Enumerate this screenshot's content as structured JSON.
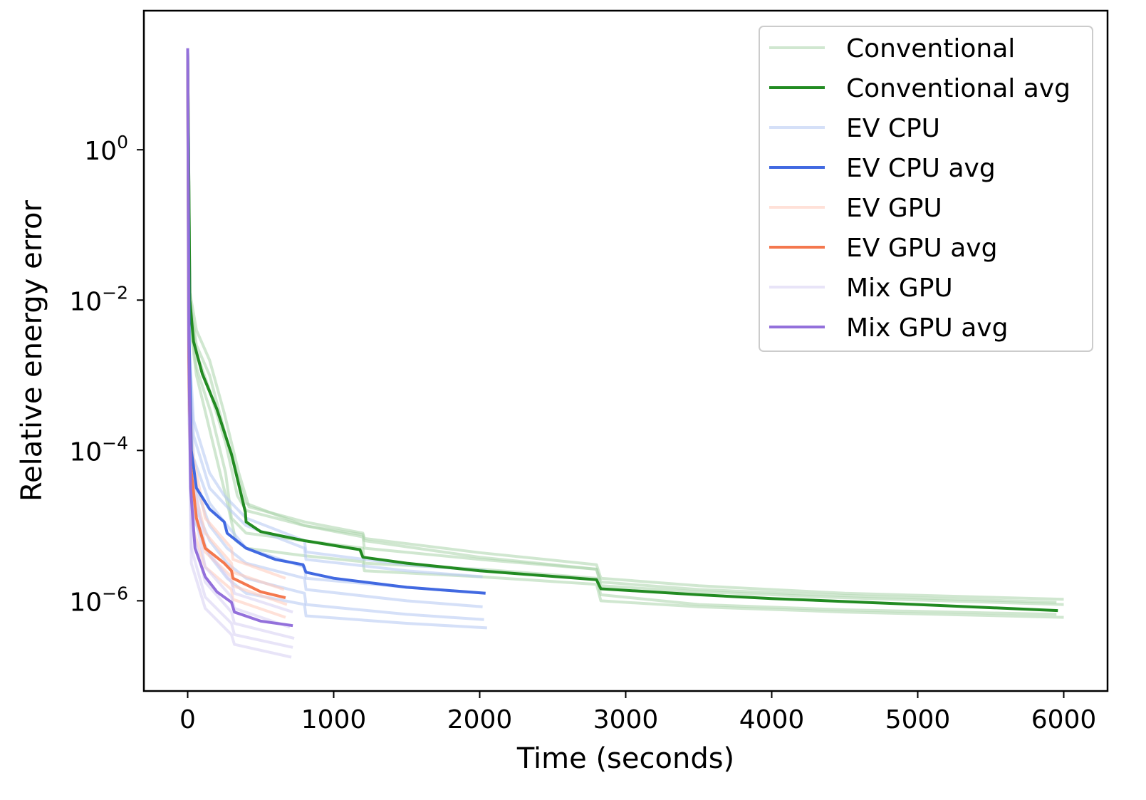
{
  "chart_data": {
    "type": "line",
    "title": "",
    "xlabel": "Time (seconds)",
    "ylabel": "Relative energy error",
    "x_scale": "linear",
    "y_scale": "log",
    "xlim": [
      -300,
      6300
    ],
    "ylim_log10": [
      -7.2,
      1.85
    ],
    "x_ticks": [
      0,
      1000,
      2000,
      3000,
      4000,
      5000,
      6000
    ],
    "x_tick_labels": [
      "0",
      "1000",
      "2000",
      "3000",
      "4000",
      "5000",
      "6000"
    ],
    "y_ticks_log10": [
      0,
      -2,
      -4,
      -6
    ],
    "y_tick_labels": [
      {
        "base": "10",
        "exp": "0"
      },
      {
        "base": "10",
        "exp": "−2"
      },
      {
        "base": "10",
        "exp": "−4"
      },
      {
        "base": "10",
        "exp": "−6"
      }
    ],
    "grid": false,
    "legend_position": "top-right",
    "legend": [
      {
        "label": "Conventional",
        "color": "#a9d4a9",
        "opacity": 0.55
      },
      {
        "label": "Conventional avg",
        "color": "#228b22",
        "opacity": 1
      },
      {
        "label": "EV CPU",
        "color": "#b3c6f2",
        "opacity": 0.55
      },
      {
        "label": "EV CPU avg",
        "color": "#4169e1",
        "opacity": 1
      },
      {
        "label": "EV GPU",
        "color": "#ffc9b8",
        "opacity": 0.55
      },
      {
        "label": "EV GPU avg",
        "color": "#f4784e",
        "opacity": 1
      },
      {
        "label": "Mix GPU",
        "color": "#d5cdf2",
        "opacity": 0.55
      },
      {
        "label": "Mix GPU avg",
        "color": "#9370db",
        "opacity": 1
      }
    ],
    "series": [
      {
        "group": "Conventional",
        "role": "avg",
        "color": "#228b22",
        "points": [
          [
            0,
            1.3
          ],
          [
            15,
            -2.0
          ],
          [
            40,
            -2.55
          ],
          [
            100,
            -2.98
          ],
          [
            200,
            -3.45
          ],
          [
            300,
            -4.05
          ],
          [
            380,
            -4.7
          ],
          [
            395,
            -4.82
          ],
          [
            400,
            -4.95
          ],
          [
            500,
            -5.08
          ],
          [
            800,
            -5.2
          ],
          [
            1180,
            -5.32
          ],
          [
            1200,
            -5.42
          ],
          [
            1500,
            -5.5
          ],
          [
            2000,
            -5.6
          ],
          [
            2800,
            -5.72
          ],
          [
            2830,
            -5.84
          ],
          [
            3500,
            -5.92
          ],
          [
            4000,
            -5.97
          ],
          [
            5000,
            -6.05
          ],
          [
            5960,
            -6.13
          ]
        ]
      },
      {
        "group": "Conventional",
        "role": "run",
        "color": "#a9d4a9",
        "points": [
          [
            0,
            1.3
          ],
          [
            15,
            -1.9
          ],
          [
            60,
            -2.4
          ],
          [
            150,
            -2.8
          ],
          [
            250,
            -3.5
          ],
          [
            350,
            -4.3
          ],
          [
            420,
            -4.75
          ],
          [
            800,
            -4.95
          ],
          [
            1200,
            -5.1
          ],
          [
            1210,
            -5.17
          ],
          [
            2000,
            -5.36
          ],
          [
            2800,
            -5.52
          ],
          [
            2830,
            -5.7
          ],
          [
            3500,
            -5.8
          ],
          [
            4500,
            -5.9
          ],
          [
            6000,
            -5.98
          ]
        ]
      },
      {
        "group": "Conventional",
        "role": "run",
        "color": "#a9d4a9",
        "points": [
          [
            0,
            1.3
          ],
          [
            15,
            -2.1
          ],
          [
            60,
            -2.7
          ],
          [
            150,
            -3.2
          ],
          [
            260,
            -3.9
          ],
          [
            340,
            -4.6
          ],
          [
            400,
            -4.8
          ],
          [
            800,
            -5.0
          ],
          [
            1200,
            -5.12
          ],
          [
            1210,
            -5.2
          ],
          [
            2000,
            -5.42
          ],
          [
            2800,
            -5.58
          ],
          [
            2830,
            -5.75
          ],
          [
            3500,
            -5.85
          ],
          [
            4500,
            -5.93
          ],
          [
            5950,
            -6.02
          ]
        ]
      },
      {
        "group": "Conventional",
        "role": "run",
        "color": "#a9d4a9",
        "points": [
          [
            0,
            1.3
          ],
          [
            15,
            -2.2
          ],
          [
            60,
            -2.9
          ],
          [
            160,
            -3.5
          ],
          [
            260,
            -4.3
          ],
          [
            300,
            -4.9
          ],
          [
            400,
            -5.1
          ],
          [
            800,
            -5.2
          ],
          [
            1200,
            -5.3
          ],
          [
            1210,
            -5.5
          ],
          [
            2000,
            -5.58
          ],
          [
            2800,
            -5.7
          ],
          [
            2830,
            -5.92
          ],
          [
            3500,
            -6.05
          ],
          [
            4500,
            -6.12
          ],
          [
            5950,
            -6.18
          ]
        ]
      },
      {
        "group": "Conventional",
        "role": "run",
        "color": "#a9d4a9",
        "points": [
          [
            0,
            1.3
          ],
          [
            15,
            -2.3
          ],
          [
            60,
            -3.0
          ],
          [
            160,
            -3.8
          ],
          [
            260,
            -4.6
          ],
          [
            330,
            -5.2
          ],
          [
            400,
            -5.3
          ],
          [
            800,
            -5.4
          ],
          [
            1200,
            -5.48
          ],
          [
            1210,
            -5.6
          ],
          [
            2000,
            -5.68
          ],
          [
            2800,
            -5.78
          ],
          [
            2830,
            -6.0
          ],
          [
            3500,
            -6.08
          ],
          [
            4500,
            -6.15
          ],
          [
            6000,
            -6.22
          ]
        ]
      },
      {
        "group": "Conventional",
        "role": "run",
        "color": "#a9d4a9",
        "points": [
          [
            0,
            1.3
          ],
          [
            15,
            -2.0
          ],
          [
            60,
            -2.6
          ],
          [
            150,
            -3.0
          ],
          [
            260,
            -3.8
          ],
          [
            380,
            -4.6
          ],
          [
            395,
            -4.7
          ],
          [
            800,
            -5.0
          ],
          [
            1200,
            -5.15
          ],
          [
            1210,
            -5.3
          ],
          [
            2000,
            -5.45
          ],
          [
            2800,
            -5.58
          ],
          [
            2830,
            -5.8
          ],
          [
            3500,
            -5.88
          ],
          [
            4500,
            -5.96
          ],
          [
            6000,
            -6.05
          ]
        ]
      },
      {
        "group": "EV CPU",
        "role": "avg",
        "color": "#4169e1",
        "points": [
          [
            0,
            1.3
          ],
          [
            10,
            -2.5
          ],
          [
            25,
            -4.0
          ],
          [
            60,
            -4.5
          ],
          [
            150,
            -4.78
          ],
          [
            250,
            -4.95
          ],
          [
            270,
            -5.1
          ],
          [
            400,
            -5.3
          ],
          [
            600,
            -5.45
          ],
          [
            790,
            -5.52
          ],
          [
            810,
            -5.62
          ],
          [
            1000,
            -5.7
          ],
          [
            1500,
            -5.82
          ],
          [
            2040,
            -5.9
          ]
        ]
      },
      {
        "group": "EV CPU",
        "role": "run",
        "color": "#b3c6f2",
        "points": [
          [
            0,
            1.3
          ],
          [
            10,
            -2.6
          ],
          [
            40,
            -3.6
          ],
          [
            150,
            -4.3
          ],
          [
            250,
            -4.6
          ],
          [
            400,
            -4.9
          ],
          [
            800,
            -5.2
          ],
          [
            810,
            -5.35
          ],
          [
            1500,
            -5.52
          ],
          [
            2050,
            -5.6
          ]
        ]
      },
      {
        "group": "EV CPU",
        "role": "run",
        "color": "#b3c6f2",
        "points": [
          [
            0,
            1.3
          ],
          [
            10,
            -2.8
          ],
          [
            40,
            -3.8
          ],
          [
            150,
            -4.5
          ],
          [
            270,
            -4.75
          ],
          [
            400,
            -5.0
          ],
          [
            800,
            -5.3
          ],
          [
            810,
            -5.45
          ],
          [
            1500,
            -5.6
          ],
          [
            2020,
            -5.68
          ]
        ]
      },
      {
        "group": "EV CPU",
        "role": "run",
        "color": "#b3c6f2",
        "points": [
          [
            0,
            1.3
          ],
          [
            10,
            -3.0
          ],
          [
            40,
            -4.1
          ],
          [
            150,
            -4.7
          ],
          [
            270,
            -5.0
          ],
          [
            400,
            -5.3
          ],
          [
            800,
            -5.55
          ],
          [
            810,
            -5.7
          ],
          [
            1500,
            -5.82
          ],
          [
            2040,
            -5.9
          ]
        ]
      },
      {
        "group": "EV CPU",
        "role": "run",
        "color": "#b3c6f2",
        "points": [
          [
            0,
            1.3
          ],
          [
            10,
            -3.3
          ],
          [
            40,
            -4.4
          ],
          [
            150,
            -5.0
          ],
          [
            270,
            -5.3
          ],
          [
            400,
            -5.5
          ],
          [
            800,
            -5.7
          ],
          [
            810,
            -5.85
          ],
          [
            1500,
            -6.0
          ],
          [
            2020,
            -6.08
          ]
        ]
      },
      {
        "group": "EV CPU",
        "role": "run",
        "color": "#b3c6f2",
        "points": [
          [
            0,
            1.3
          ],
          [
            10,
            -3.5
          ],
          [
            40,
            -4.7
          ],
          [
            150,
            -5.2
          ],
          [
            270,
            -5.5
          ],
          [
            400,
            -5.7
          ],
          [
            800,
            -5.9
          ],
          [
            810,
            -6.05
          ],
          [
            1500,
            -6.18
          ],
          [
            2030,
            -6.25
          ]
        ]
      },
      {
        "group": "EV CPU",
        "role": "run",
        "color": "#b3c6f2",
        "points": [
          [
            0,
            1.3
          ],
          [
            10,
            -3.6
          ],
          [
            40,
            -4.9
          ],
          [
            150,
            -5.4
          ],
          [
            270,
            -5.7
          ],
          [
            400,
            -5.9
          ],
          [
            800,
            -6.05
          ],
          [
            810,
            -6.2
          ],
          [
            1500,
            -6.3
          ],
          [
            2050,
            -6.36
          ]
        ]
      },
      {
        "group": "EV GPU",
        "role": "avg",
        "color": "#f4784e",
        "points": [
          [
            0,
            1.3
          ],
          [
            8,
            -2.8
          ],
          [
            20,
            -4.2
          ],
          [
            60,
            -4.9
          ],
          [
            120,
            -5.3
          ],
          [
            250,
            -5.5
          ],
          [
            300,
            -5.6
          ],
          [
            310,
            -5.7
          ],
          [
            500,
            -5.88
          ],
          [
            670,
            -5.96
          ]
        ]
      },
      {
        "group": "EV GPU",
        "role": "run",
        "color": "#ffc9b8",
        "points": [
          [
            0,
            1.3
          ],
          [
            8,
            -2.5
          ],
          [
            30,
            -4.0
          ],
          [
            120,
            -4.9
          ],
          [
            300,
            -5.3
          ],
          [
            310,
            -5.45
          ],
          [
            670,
            -5.7
          ]
        ]
      },
      {
        "group": "EV GPU",
        "role": "run",
        "color": "#ffc9b8",
        "points": [
          [
            0,
            1.3
          ],
          [
            8,
            -2.9
          ],
          [
            30,
            -4.4
          ],
          [
            120,
            -5.1
          ],
          [
            300,
            -5.5
          ],
          [
            310,
            -5.62
          ],
          [
            660,
            -5.85
          ]
        ]
      },
      {
        "group": "EV GPU",
        "role": "run",
        "color": "#ffc9b8",
        "points": [
          [
            0,
            1.3
          ],
          [
            8,
            -3.2
          ],
          [
            30,
            -4.7
          ],
          [
            120,
            -5.35
          ],
          [
            300,
            -5.68
          ],
          [
            310,
            -5.8
          ],
          [
            680,
            -6.05
          ]
        ]
      },
      {
        "group": "EV GPU",
        "role": "run",
        "color": "#ffc9b8",
        "points": [
          [
            0,
            1.3
          ],
          [
            8,
            -3.4
          ],
          [
            30,
            -5.0
          ],
          [
            120,
            -5.55
          ],
          [
            300,
            -5.85
          ],
          [
            310,
            -5.98
          ],
          [
            670,
            -6.22
          ]
        ]
      },
      {
        "group": "Mix GPU",
        "role": "avg",
        "color": "#9370db",
        "points": [
          [
            0,
            1.35
          ],
          [
            8,
            -2.5
          ],
          [
            20,
            -4.5
          ],
          [
            50,
            -5.3
          ],
          [
            120,
            -5.68
          ],
          [
            200,
            -5.88
          ],
          [
            300,
            -6.02
          ],
          [
            320,
            -6.15
          ],
          [
            500,
            -6.27
          ],
          [
            720,
            -6.33
          ]
        ]
      },
      {
        "group": "Mix GPU",
        "role": "run",
        "color": "#d5cdf2",
        "points": [
          [
            0,
            1.35
          ],
          [
            8,
            -2.3
          ],
          [
            25,
            -4.2
          ],
          [
            120,
            -5.3
          ],
          [
            300,
            -5.75
          ],
          [
            320,
            -5.9
          ],
          [
            720,
            -6.15
          ]
        ]
      },
      {
        "group": "Mix GPU",
        "role": "run",
        "color": "#d5cdf2",
        "points": [
          [
            0,
            1.35
          ],
          [
            8,
            -2.6
          ],
          [
            25,
            -4.6
          ],
          [
            120,
            -5.55
          ],
          [
            300,
            -5.95
          ],
          [
            320,
            -6.1
          ],
          [
            700,
            -6.35
          ]
        ]
      },
      {
        "group": "Mix GPU",
        "role": "run",
        "color": "#d5cdf2",
        "points": [
          [
            0,
            1.35
          ],
          [
            8,
            -2.9
          ],
          [
            25,
            -5.0
          ],
          [
            120,
            -5.75
          ],
          [
            300,
            -6.15
          ],
          [
            320,
            -6.3
          ],
          [
            730,
            -6.5
          ]
        ]
      },
      {
        "group": "Mix GPU",
        "role": "run",
        "color": "#d5cdf2",
        "points": [
          [
            0,
            1.35
          ],
          [
            8,
            -3.1
          ],
          [
            25,
            -5.3
          ],
          [
            120,
            -5.95
          ],
          [
            300,
            -6.3
          ],
          [
            320,
            -6.45
          ],
          [
            720,
            -6.62
          ]
        ]
      },
      {
        "group": "Mix GPU",
        "role": "run",
        "color": "#d5cdf2",
        "points": [
          [
            0,
            1.35
          ],
          [
            8,
            -3.3
          ],
          [
            25,
            -5.5
          ],
          [
            120,
            -6.1
          ],
          [
            300,
            -6.45
          ],
          [
            320,
            -6.58
          ],
          [
            710,
            -6.75
          ]
        ]
      }
    ]
  }
}
